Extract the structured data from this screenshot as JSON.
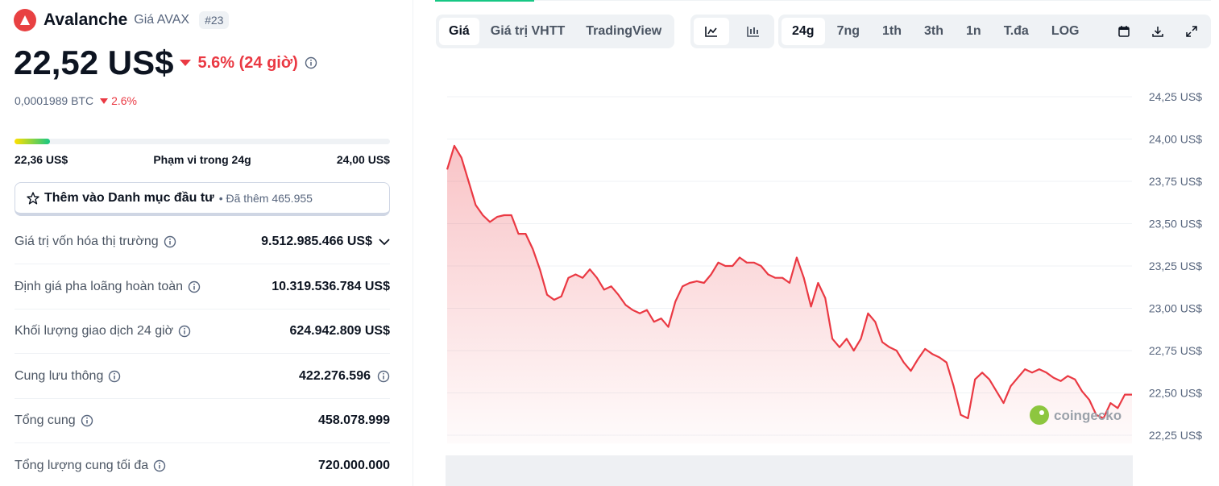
{
  "header": {
    "name": "Avalanche",
    "subtitle": "Giá AVAX",
    "rank": "#23"
  },
  "price": {
    "value": "22,52 US$",
    "change": "5.6% (24 giờ)",
    "btc": "0,0001989 BTC",
    "btc_change": "2.6%"
  },
  "range": {
    "low": "22,36 US$",
    "label": "Phạm vi trong 24g",
    "high": "24,00 US$"
  },
  "watchlist": {
    "label": "Thêm vào Danh mục đầu tư",
    "note": "• Đã thêm 465.955"
  },
  "stats": [
    {
      "label": "Giá trị vốn hóa thị trường",
      "value": "9.512.985.466 US$"
    },
    {
      "label": "Định giá pha loãng hoàn toàn",
      "value": "10.319.536.784 US$"
    },
    {
      "label": "Khối lượng giao dịch 24 giờ",
      "value": "624.942.809 US$"
    },
    {
      "label": "Cung lưu thông",
      "value": "422.276.596"
    },
    {
      "label": "Tổng cung",
      "value": "458.078.999"
    },
    {
      "label": "Tổng lượng cung tối đa",
      "value": "720.000.000"
    }
  ],
  "tabs": [
    "Giá",
    "Giá trị VHTT",
    "TradingView"
  ],
  "periods": [
    "24g",
    "7ng",
    "1th",
    "3th",
    "1n",
    "T.đa",
    "LOG"
  ],
  "watermark": "coingecko",
  "chart_data": {
    "type": "area",
    "color": "#ea3943",
    "values": [
      23.82,
      23.96,
      23.89,
      23.75,
      23.61,
      23.55,
      23.51,
      23.54,
      23.55,
      23.55,
      23.44,
      23.44,
      23.35,
      23.23,
      23.08,
      23.05,
      23.07,
      23.18,
      23.2,
      23.18,
      23.23,
      23.18,
      23.11,
      23.13,
      23.08,
      23.02,
      22.99,
      22.97,
      22.99,
      22.92,
      22.94,
      22.89,
      23.04,
      23.13,
      23.15,
      23.16,
      23.15,
      23.2,
      23.27,
      23.25,
      23.25,
      23.3,
      23.27,
      23.27,
      23.25,
      23.2,
      23.18,
      23.18,
      23.15,
      23.3,
      23.18,
      23.01,
      23.15,
      23.06,
      22.82,
      22.77,
      22.82,
      22.75,
      22.82,
      22.97,
      22.92,
      22.8,
      22.77,
      22.75,
      22.68,
      22.63,
      22.7,
      22.76,
      22.73,
      22.71,
      22.68,
      22.54,
      22.37,
      22.35,
      22.58,
      22.62,
      22.58,
      22.51,
      22.44,
      22.54,
      22.59,
      22.64,
      22.62,
      22.64,
      22.62,
      22.59,
      22.57,
      22.6,
      22.58,
      22.51,
      22.46,
      22.37,
      22.35,
      22.44,
      22.41,
      22.49,
      22.49
    ],
    "ylim": [
      22.2,
      24.35
    ],
    "yticks": [
      {
        "value": 22.25,
        "label": "22,25 US$"
      },
      {
        "value": 22.5,
        "label": "22,50 US$"
      },
      {
        "value": 22.75,
        "label": "22,75 US$"
      },
      {
        "value": 23,
        "label": "23,00 US$"
      },
      {
        "value": 23.25,
        "label": "23,25 US$"
      },
      {
        "value": 23.5,
        "label": "23,50 US$"
      },
      {
        "value": 23.75,
        "label": "23,75 US$"
      },
      {
        "value": 24,
        "label": "24,00 US$"
      },
      {
        "value": 24.25,
        "label": "24,25 US$"
      }
    ],
    "grid": true
  }
}
